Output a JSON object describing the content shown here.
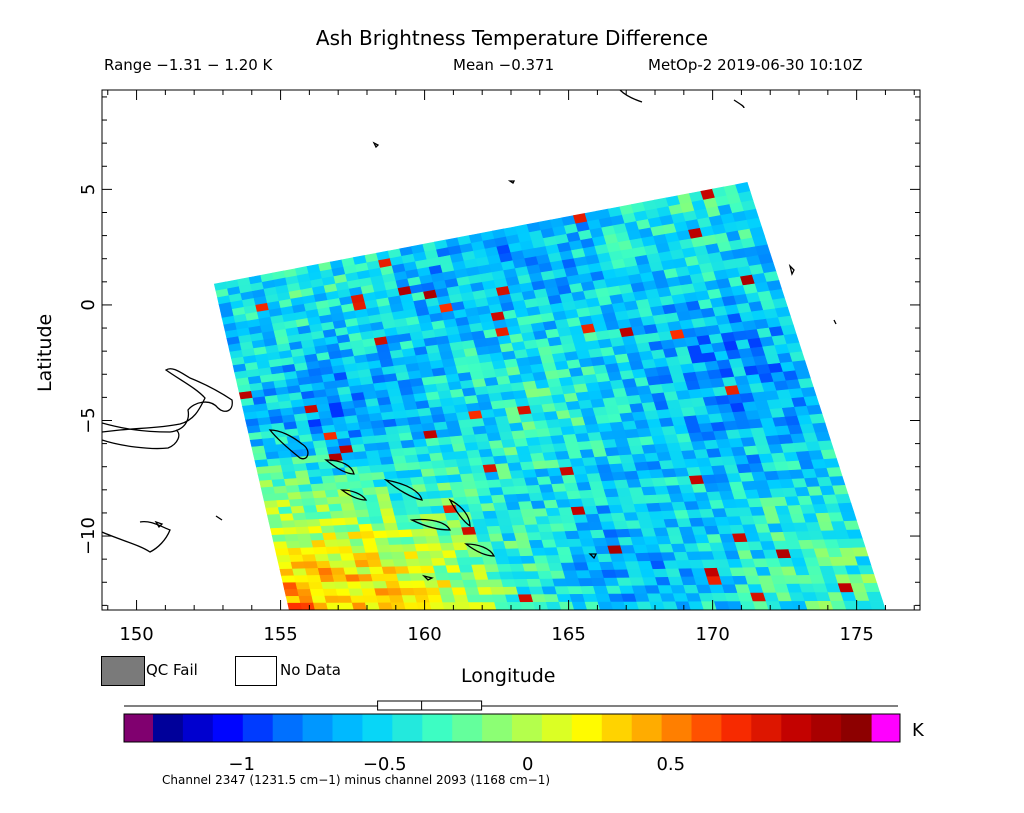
{
  "header": {
    "title": "Ash Brightness Temperature Difference",
    "range_text": "Range −1.31 − 1.20 K",
    "mean_text": "Mean −0.371",
    "satellite_text": "MetOp-2 2019-06-30 10:10Z"
  },
  "legend": {
    "qc_fail_label": "QC Fail",
    "qc_fail_color": "#7a7a7a",
    "no_data_label": "No Data",
    "no_data_color": "#ffffff"
  },
  "colorbar": {
    "unit": "K",
    "range": [
      -1.31,
      1.2
    ],
    "ticks": [
      {
        "value": -1,
        "label": "−1"
      },
      {
        "value": -0.5,
        "label": "−0.5"
      },
      {
        "value": 0,
        "label": "0"
      },
      {
        "value": 0.5,
        "label": "0.5"
      }
    ],
    "low_overflow_color": "#80006f",
    "high_overflow_color": "#ff00ff",
    "colors": [
      "#000080",
      "#0000ff",
      "#0080ff",
      "#00d0ff",
      "#40ffc0",
      "#a0ff60",
      "#ffff00",
      "#ffa000",
      "#ff3000",
      "#c00000",
      "#800000"
    ],
    "mean_marker": -0.371
  },
  "footer": {
    "channel_text": "Channel 2347 (1231.5 cm−1) minus channel 2093 (1168 cm−1)"
  },
  "chart_data": {
    "type": "heatmap",
    "title": "Ash Brightness Temperature Difference",
    "xlabel": "Longitude",
    "ylabel": "Latitude",
    "xlim": [
      148.8,
      177.2
    ],
    "ylim": [
      -13.2,
      9.3
    ],
    "xticks": [
      150,
      155,
      160,
      165,
      170,
      175
    ],
    "yticks": [
      5,
      0,
      -5,
      -10
    ],
    "grid": false,
    "swath_corners": [
      {
        "lon": 152.7,
        "lat": 0.9
      },
      {
        "lon": 171.2,
        "lat": 5.3
      },
      {
        "lon": 176.0,
        "lat": -13.2
      },
      {
        "lon": 155.3,
        "lat": -13.2
      }
    ],
    "value_range": [
      -1.31,
      1.2
    ],
    "mean": -0.371
  }
}
